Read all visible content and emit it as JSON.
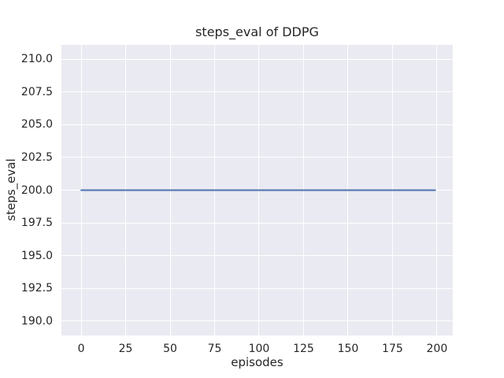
{
  "chart_data": {
    "type": "line",
    "title": "steps_eval of DDPG",
    "xlabel": "episodes",
    "ylabel": "steps_eval",
    "x_ticks": {
      "values": [
        0,
        25,
        50,
        75,
        100,
        125,
        150,
        175,
        200
      ],
      "labels": [
        "0",
        "25",
        "50",
        "75",
        "100",
        "125",
        "150",
        "175",
        "200"
      ]
    },
    "y_ticks": {
      "values": [
        190.0,
        192.5,
        195.0,
        197.5,
        200.0,
        202.5,
        205.0,
        207.5,
        210.0
      ],
      "labels": [
        "190.0",
        "192.5",
        "195.0",
        "197.5",
        "200.0",
        "202.5",
        "205.0",
        "207.5",
        "210.0"
      ]
    },
    "xlim": [
      -11.1,
      208.9
    ],
    "ylim": [
      188.9,
      211.1
    ],
    "grid": true,
    "legend_position": "none",
    "series": [
      {
        "name": "steps_eval of DDPG",
        "color": "#4c72b0",
        "x": [
          0,
          199
        ],
        "y": [
          200.0,
          200.0
        ]
      }
    ],
    "style": {
      "plot_background": "#eaeaf2",
      "grid_color": "#ffffff",
      "text_color": "#262626",
      "figure_background": "#ffffff",
      "line_width": 2
    }
  }
}
